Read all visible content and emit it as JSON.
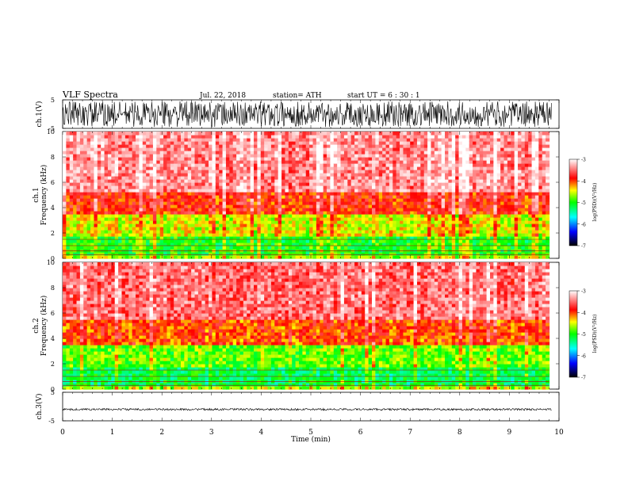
{
  "header": {
    "title": "VLF Spectra",
    "date": "Jul. 22, 2018",
    "station": "station= ATH",
    "start": "start UT = 6 : 30 : 1"
  },
  "colors": {
    "scale_stops": [
      "#000000",
      "#0000ff",
      "#00ffff",
      "#00ff00",
      "#ffff00",
      "#ff0000",
      "#ffffff"
    ],
    "waveform": "#000000"
  },
  "chart_data": [
    {
      "type": "line",
      "name": "ch1-waveform",
      "ylabel": "ch.1(V)",
      "ylim": [
        -5,
        5
      ],
      "y_ticks": [
        "5",
        "-5"
      ],
      "xlim": [
        0,
        10
      ],
      "amplitude_v": 4.5
    },
    {
      "type": "heatmap",
      "name": "ch1-spectrogram",
      "ylabel": "ch.1\nFrequency (kHz)",
      "ylabel_lines": [
        "ch.1",
        "Frequency (kHz)"
      ],
      "ylim": [
        0,
        10
      ],
      "y_ticks": [
        "0",
        "2",
        "4",
        "6",
        "8",
        "10"
      ],
      "xlim": [
        0,
        9.8
      ],
      "colorbar": {
        "label": "log(PSD)(V²/Hz)",
        "ticks": [
          "-3",
          "-4",
          "-5",
          "-6",
          "-7"
        ],
        "range": [
          -7,
          -3
        ]
      },
      "bands": [
        {
          "f": [
            0,
            0.3
          ],
          "log_psd": -4.6
        },
        {
          "f": [
            0.3,
            1.8
          ],
          "log_psd": -5.0
        },
        {
          "f": [
            1.8,
            3.5
          ],
          "log_psd": -4.5
        },
        {
          "f": [
            3.5,
            5.2
          ],
          "log_psd": -3.9
        },
        {
          "f": [
            5.2,
            10
          ],
          "log_psd": -3.4
        }
      ]
    },
    {
      "type": "heatmap",
      "name": "ch2-spectrogram",
      "ylabel": "ch.2\nFrequency (kHz)",
      "ylabel_lines": [
        "ch.2",
        "Frequency (kHz)"
      ],
      "ylim": [
        0,
        10
      ],
      "y_ticks": [
        "0",
        "2",
        "4",
        "6",
        "8",
        "10"
      ],
      "xlim": [
        0,
        9.8
      ],
      "colorbar": {
        "label": "log(PSD)(V²/Hz)",
        "ticks": [
          "-3",
          "-4",
          "-5",
          "-6",
          "-7"
        ],
        "range": [
          -7,
          -3
        ]
      },
      "bands": [
        {
          "f": [
            0,
            0.3
          ],
          "log_psd": -4.6
        },
        {
          "f": [
            0.3,
            1.8
          ],
          "log_psd": -5.2
        },
        {
          "f": [
            1.8,
            3.5
          ],
          "log_psd": -4.8
        },
        {
          "f": [
            3.5,
            5.5
          ],
          "log_psd": -4.0
        },
        {
          "f": [
            5.5,
            10
          ],
          "log_psd": -3.5
        }
      ]
    },
    {
      "type": "line",
      "name": "ch3-waveform",
      "ylabel": "ch.3(V)",
      "ylim": [
        -5,
        5
      ],
      "y_ticks": [
        "5",
        "-5"
      ],
      "xlim": [
        0,
        10
      ],
      "baseline_v": -1.0,
      "amplitude_v": 0.35,
      "xlabel": "Time (min)",
      "x_ticks": [
        "0",
        "1",
        "2",
        "3",
        "4",
        "5",
        "6",
        "7",
        "8",
        "9",
        "10"
      ]
    }
  ]
}
